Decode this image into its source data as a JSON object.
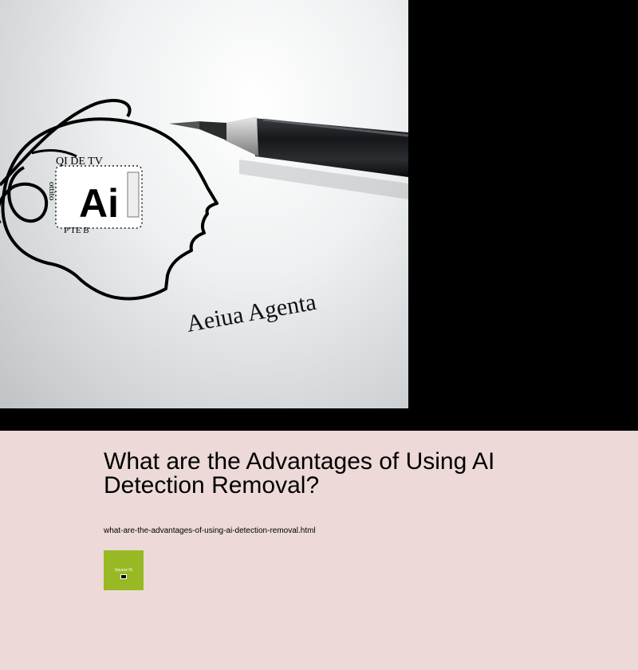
{
  "hero": {
    "image_alt": "AI head sketch with pen",
    "image_text_chip": "Ai",
    "image_text_chip_top": "QI DE TV",
    "image_text_chip_left": "ottito",
    "image_text_chip_bottom": "P'TE B",
    "image_caption": "Aeiua Agenta"
  },
  "article": {
    "title": "What are the Advantages of Using AI Detection Removal?",
    "link": "what-are-the-advantages-of-using-ai-detection-removal.html"
  },
  "badge": {
    "label": "Source IS",
    "color": "#99b924"
  }
}
